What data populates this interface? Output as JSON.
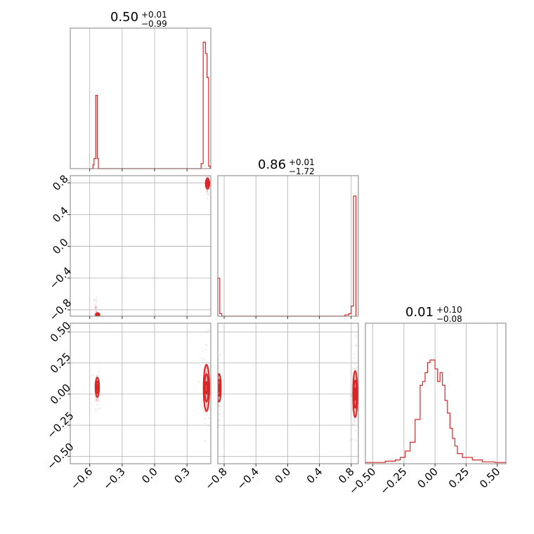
{
  "chart_data": {
    "type": "corner",
    "color": "#d62728",
    "panel_titles": [
      {
        "value": "0.50",
        "plus": "+0.01",
        "minus": "−0.99"
      },
      {
        "value": "0.86",
        "plus": "+0.01",
        "minus": "−1.72"
      },
      {
        "value": "0.01",
        "plus": "+0.10",
        "minus": "−0.08"
      }
    ],
    "params": [
      {
        "range": [
          -0.78,
          0.52
        ],
        "ticks": [
          -0.6,
          -0.3,
          0.0,
          0.3
        ],
        "tick_labels": [
          "−0.6",
          "−0.3",
          "0.0",
          "0.3"
        ]
      },
      {
        "range": [
          -0.88,
          0.89
        ],
        "ticks": [
          -0.8,
          -0.4,
          0.0,
          0.4,
          0.8
        ],
        "tick_labels": [
          "−0.8",
          "−0.4",
          "0.0",
          "0.4",
          "0.8"
        ]
      },
      {
        "range": [
          -0.56,
          0.57
        ],
        "ticks": [
          -0.5,
          -0.25,
          0.0,
          0.25,
          0.5
        ],
        "tick_labels": [
          "−0.50",
          "−0.25",
          "0.00",
          "0.25",
          "0.50"
        ]
      }
    ],
    "grid": true,
    "histograms": [
      {
        "param": 0,
        "bins": [
          [
            -0.59,
            -0.57,
            0
          ],
          [
            -0.57,
            -0.56,
            0.03
          ],
          [
            -0.56,
            -0.545,
            0.08
          ],
          [
            -0.545,
            -0.53,
            0.58
          ],
          [
            -0.53,
            -0.52,
            0.08
          ],
          [
            -0.52,
            0.41,
            0
          ],
          [
            0.41,
            0.43,
            0
          ],
          [
            0.43,
            0.45,
            0.04
          ],
          [
            0.45,
            0.47,
            1.0
          ],
          [
            0.47,
            0.485,
            0.91
          ],
          [
            0.485,
            0.5,
            0.72
          ],
          [
            0.5,
            0.515,
            0.02
          ]
        ]
      },
      {
        "param": 1,
        "bins": [
          [
            -0.88,
            -0.855,
            0.3
          ],
          [
            -0.855,
            -0.83,
            0.02
          ],
          [
            -0.83,
            0.72,
            0
          ],
          [
            0.72,
            0.77,
            0.01
          ],
          [
            0.77,
            0.8,
            0.02
          ],
          [
            0.8,
            0.83,
            0.08
          ],
          [
            0.83,
            0.86,
            0.95
          ]
        ]
      },
      {
        "param": 2,
        "bins": [
          [
            -0.56,
            -0.5,
            0.01
          ],
          [
            -0.5,
            -0.4,
            0.01
          ],
          [
            -0.4,
            -0.32,
            0.02
          ],
          [
            -0.32,
            -0.28,
            0.03
          ],
          [
            -0.28,
            -0.24,
            0.05
          ],
          [
            -0.24,
            -0.2,
            0.1
          ],
          [
            -0.2,
            -0.16,
            0.17
          ],
          [
            -0.16,
            -0.12,
            0.35
          ],
          [
            -0.12,
            -0.1,
            0.62
          ],
          [
            -0.1,
            -0.08,
            0.65
          ],
          [
            -0.08,
            -0.06,
            0.72
          ],
          [
            -0.06,
            -0.04,
            0.8
          ],
          [
            -0.04,
            -0.02,
            0.82
          ],
          [
            -0.02,
            0.0,
            0.82
          ],
          [
            0.0,
            0.02,
            0.75
          ],
          [
            0.02,
            0.04,
            0.65
          ],
          [
            0.04,
            0.06,
            0.72
          ],
          [
            0.06,
            0.08,
            0.62
          ],
          [
            0.08,
            0.1,
            0.5
          ],
          [
            0.1,
            0.12,
            0.4
          ],
          [
            0.12,
            0.14,
            0.28
          ],
          [
            0.14,
            0.16,
            0.2
          ],
          [
            0.16,
            0.18,
            0.14
          ],
          [
            0.18,
            0.22,
            0.08
          ],
          [
            0.22,
            0.3,
            0.05
          ],
          [
            0.3,
            0.38,
            0.03
          ],
          [
            0.38,
            0.48,
            0.015
          ],
          [
            0.48,
            0.57,
            0.01
          ]
        ]
      }
    ],
    "pairs": [
      {
        "x_param": 0,
        "y_param": 1,
        "modes": [
          {
            "x": [
              0.48,
              0.5
            ],
            "y": [
              0.7,
              0.88
            ],
            "weight": "high"
          },
          {
            "x": [
              -0.545,
              -0.51
            ],
            "y": [
              -0.88,
              -0.84
            ],
            "weight": "medium"
          },
          {
            "x": [
              -0.555,
              -0.54
            ],
            "y": [
              -0.85,
              -0.66
            ],
            "weight": "low"
          }
        ]
      },
      {
        "x_param": 0,
        "y_param": 2,
        "modes": [
          {
            "x": [
              -0.545,
              -0.515
            ],
            "y": [
              -0.05,
              0.16
            ],
            "weight": "high"
          },
          {
            "x": [
              0.45,
              0.51
            ],
            "y": [
              -0.2,
              0.3
            ],
            "weight": "high"
          }
        ]
      },
      {
        "x_param": 1,
        "y_param": 2,
        "modes": [
          {
            "x": [
              -0.88,
              -0.85
            ],
            "y": [
              -0.1,
              0.2
            ],
            "weight": "medium"
          },
          {
            "x": [
              0.82,
              0.88
            ],
            "y": [
              -0.25,
              0.25
            ],
            "weight": "high"
          }
        ]
      }
    ]
  }
}
